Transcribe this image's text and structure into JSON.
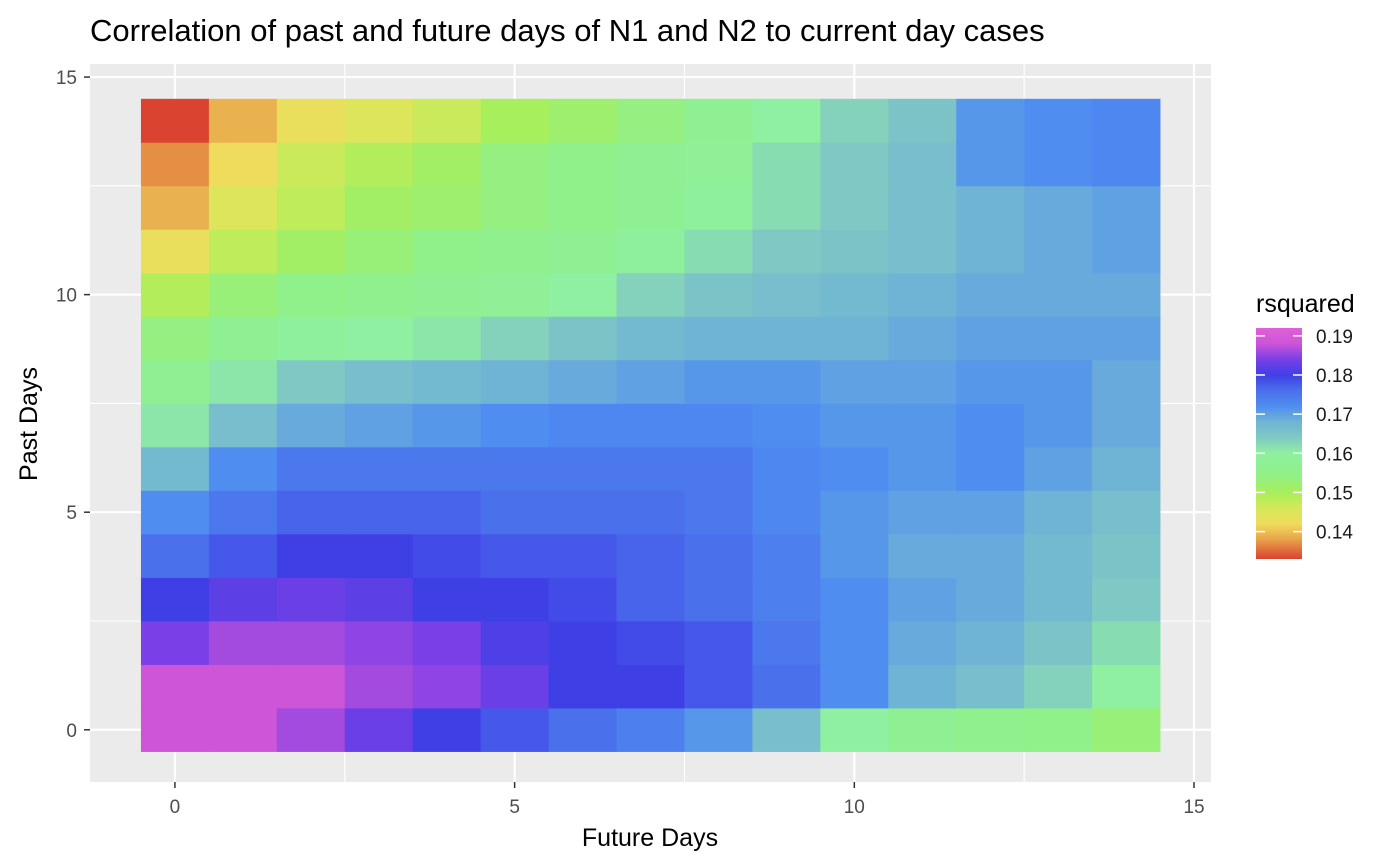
{
  "chart_data": {
    "type": "heatmap",
    "title": "Correlation of past and future days of N1 and N2 to current day cases",
    "xlabel": "Future Days",
    "ylabel": "Past Days",
    "x": [
      0,
      1,
      2,
      3,
      4,
      5,
      6,
      7,
      8,
      9,
      10,
      11,
      12,
      13,
      14
    ],
    "y": [
      0,
      1,
      2,
      3,
      4,
      5,
      6,
      7,
      8,
      9,
      10,
      11,
      12,
      13,
      14
    ],
    "xlim": [
      -1.25,
      15.25
    ],
    "ylim": [
      -1.2,
      15.3
    ],
    "x_ticks": [
      0,
      5,
      10,
      15
    ],
    "y_ticks": [
      0,
      5,
      10,
      15
    ],
    "x_tick_labels": [
      "0",
      "5",
      "10",
      "15"
    ],
    "y_tick_labels": [
      "0",
      "5",
      "10",
      "15"
    ],
    "grid": true,
    "panel_background": "#ebebeb",
    "gridline_color": "#ffffff",
    "z_rows_past_0_to_14": [
      [
        0.188,
        0.188,
        0.186,
        0.183,
        0.18,
        0.178,
        0.176,
        0.174,
        0.171,
        0.166,
        0.16,
        0.157,
        0.156,
        0.155,
        0.153
      ],
      [
        0.188,
        0.188,
        0.188,
        0.186,
        0.185,
        0.183,
        0.18,
        0.18,
        0.178,
        0.176,
        0.172,
        0.168,
        0.166,
        0.163,
        0.16
      ],
      [
        0.184,
        0.186,
        0.186,
        0.185,
        0.184,
        0.181,
        0.18,
        0.179,
        0.178,
        0.175,
        0.172,
        0.169,
        0.168,
        0.165,
        0.162
      ],
      [
        0.18,
        0.182,
        0.183,
        0.182,
        0.18,
        0.18,
        0.179,
        0.177,
        0.176,
        0.174,
        0.172,
        0.17,
        0.169,
        0.167,
        0.164
      ],
      [
        0.176,
        0.178,
        0.18,
        0.18,
        0.179,
        0.178,
        0.178,
        0.177,
        0.176,
        0.174,
        0.171,
        0.169,
        0.169,
        0.167,
        0.165
      ],
      [
        0.172,
        0.175,
        0.177,
        0.177,
        0.177,
        0.176,
        0.176,
        0.176,
        0.175,
        0.173,
        0.171,
        0.17,
        0.17,
        0.168,
        0.166
      ],
      [
        0.167,
        0.172,
        0.175,
        0.175,
        0.175,
        0.175,
        0.175,
        0.175,
        0.175,
        0.173,
        0.172,
        0.171,
        0.172,
        0.17,
        0.168
      ],
      [
        0.161,
        0.166,
        0.169,
        0.17,
        0.171,
        0.172,
        0.173,
        0.173,
        0.173,
        0.172,
        0.171,
        0.171,
        0.172,
        0.171,
        0.169
      ],
      [
        0.157,
        0.161,
        0.164,
        0.166,
        0.167,
        0.168,
        0.169,
        0.17,
        0.171,
        0.171,
        0.17,
        0.17,
        0.171,
        0.171,
        0.169
      ],
      [
        0.154,
        0.157,
        0.159,
        0.16,
        0.161,
        0.163,
        0.165,
        0.167,
        0.168,
        0.168,
        0.168,
        0.169,
        0.17,
        0.17,
        0.17
      ],
      [
        0.149,
        0.153,
        0.155,
        0.156,
        0.157,
        0.158,
        0.16,
        0.163,
        0.165,
        0.166,
        0.167,
        0.168,
        0.169,
        0.169,
        0.169
      ],
      [
        0.143,
        0.148,
        0.151,
        0.153,
        0.155,
        0.156,
        0.157,
        0.159,
        0.162,
        0.164,
        0.165,
        0.166,
        0.168,
        0.169,
        0.17
      ],
      [
        0.139,
        0.145,
        0.148,
        0.151,
        0.152,
        0.154,
        0.155,
        0.157,
        0.159,
        0.162,
        0.164,
        0.166,
        0.168,
        0.169,
        0.17
      ],
      [
        0.137,
        0.142,
        0.147,
        0.149,
        0.151,
        0.154,
        0.155,
        0.157,
        0.158,
        0.162,
        0.164,
        0.166,
        0.171,
        0.172,
        0.173
      ],
      [
        0.133,
        0.139,
        0.143,
        0.145,
        0.147,
        0.15,
        0.152,
        0.154,
        0.157,
        0.16,
        0.163,
        0.165,
        0.171,
        0.172,
        0.173
      ]
    ],
    "colorbar": {
      "title": "rsquared",
      "min": 0.133,
      "max": 0.192,
      "ticks": [
        0.19,
        0.18,
        0.17,
        0.16,
        0.15,
        0.14
      ],
      "tick_labels": [
        "0.19",
        "0.18",
        "0.17",
        "0.16",
        "0.15",
        "0.14"
      ],
      "stops": [
        {
          "value": 0.133,
          "color": "#d9432f"
        },
        {
          "value": 0.138,
          "color": "#e8a24a"
        },
        {
          "value": 0.142,
          "color": "#f0dc5c"
        },
        {
          "value": 0.146,
          "color": "#d6e85a"
        },
        {
          "value": 0.15,
          "color": "#a7ef5c"
        },
        {
          "value": 0.155,
          "color": "#90f08a"
        },
        {
          "value": 0.16,
          "color": "#8ef0a0"
        },
        {
          "value": 0.164,
          "color": "#80c8c4"
        },
        {
          "value": 0.168,
          "color": "#6fb4d4"
        },
        {
          "value": 0.172,
          "color": "#4f8ef0"
        },
        {
          "value": 0.176,
          "color": "#4a70ec"
        },
        {
          "value": 0.18,
          "color": "#3f3fe6"
        },
        {
          "value": 0.184,
          "color": "#7a3fe6"
        },
        {
          "value": 0.188,
          "color": "#cc55d8"
        },
        {
          "value": 0.192,
          "color": "#e060d8"
        }
      ]
    }
  }
}
